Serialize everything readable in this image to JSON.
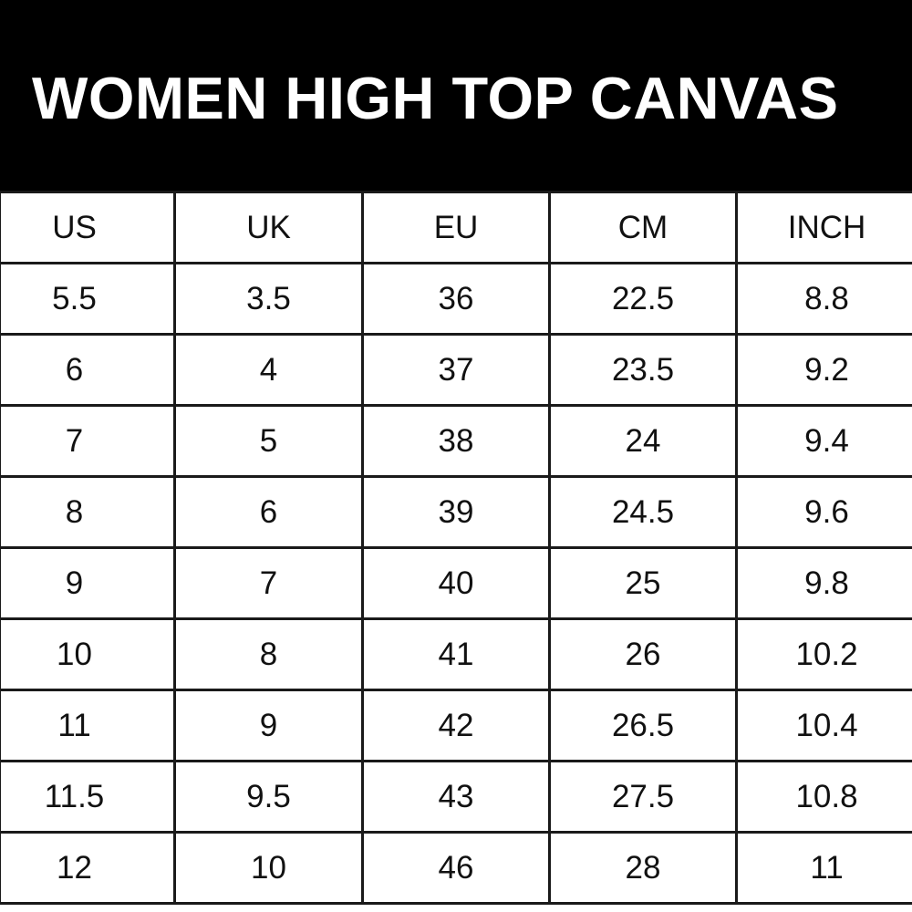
{
  "title": "WOMEN HIGH TOP CANVAS",
  "columns": [
    "US",
    "UK",
    "EU",
    "CM",
    "INCH"
  ],
  "rows": [
    [
      "5.5",
      "3.5",
      "36",
      "22.5",
      "8.8"
    ],
    [
      "6",
      "4",
      "37",
      "23.5",
      "9.2"
    ],
    [
      "7",
      "5",
      "38",
      "24",
      "9.4"
    ],
    [
      "8",
      "6",
      "39",
      "24.5",
      "9.6"
    ],
    [
      "9",
      "7",
      "40",
      "25",
      "9.8"
    ],
    [
      "10",
      "8",
      "41",
      "26",
      "10.2"
    ],
    [
      "11",
      "9",
      "42",
      "26.5",
      "10.4"
    ],
    [
      "11.5",
      "9.5",
      "43",
      "27.5",
      "10.8"
    ],
    [
      "12",
      "10",
      "46",
      "28",
      "11"
    ]
  ],
  "colors": {
    "header_bg": "#000000",
    "title": "#ffffff",
    "grid": "#1a1a1a"
  }
}
